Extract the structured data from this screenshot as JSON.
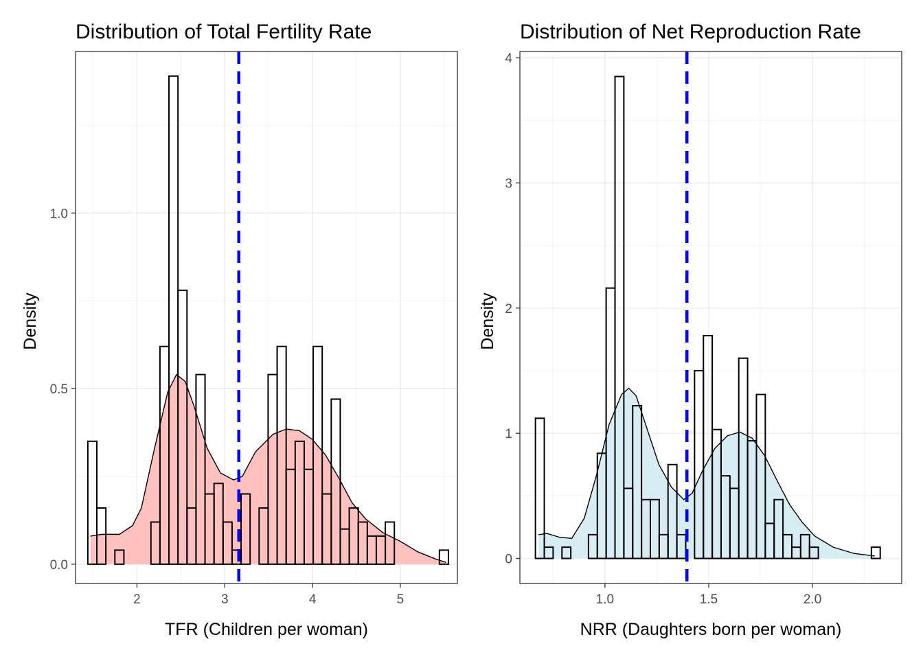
{
  "chart_data": [
    {
      "type": "histogram",
      "title": "Distribution of Total Fertility Rate",
      "xlabel": "TFR (Children per woman)",
      "ylabel": "Density",
      "xlim": [
        1.3,
        5.65
      ],
      "ylim": [
        -0.055,
        1.46
      ],
      "xticks": [
        2,
        3,
        4,
        5
      ],
      "xtick_labels": [
        "2",
        "3",
        "4",
        "5"
      ],
      "yticks": [
        0.0,
        0.5,
        1.0
      ],
      "ytick_labels": [
        "0.0",
        "0.5",
        "1.0"
      ],
      "grid": true,
      "fill_color": "#ffc0c0",
      "reference_line": {
        "x": 3.16,
        "color": "#0000ff",
        "style": "dashed"
      },
      "bins": {
        "start": 1.44,
        "width": 0.1027,
        "density": [
          0.35,
          0.16,
          0.0,
          0.04,
          0.0,
          0.0,
          0.0,
          0.12,
          0.62,
          1.39,
          0.78,
          0.16,
          0.54,
          0.2,
          0.23,
          0.12,
          0.04,
          0.2,
          0.0,
          0.16,
          0.54,
          0.62,
          0.27,
          0.35,
          0.27,
          0.62,
          0.2,
          0.47,
          0.1,
          0.16,
          0.12,
          0.08,
          0.08,
          0.12,
          0.0,
          0.0,
          0.0,
          0.0,
          0.0,
          0.04
        ]
      },
      "density_curve": {
        "x": [
          1.47,
          1.6,
          1.8,
          1.95,
          2.05,
          2.2,
          2.35,
          2.45,
          2.55,
          2.65,
          2.8,
          2.95,
          3.1,
          3.2,
          3.35,
          3.55,
          3.7,
          3.85,
          4.0,
          4.15,
          4.3,
          4.45,
          4.6,
          4.8,
          5.0,
          5.2,
          5.4,
          5.52
        ],
        "y": [
          0.08,
          0.085,
          0.085,
          0.11,
          0.16,
          0.33,
          0.49,
          0.54,
          0.52,
          0.45,
          0.33,
          0.26,
          0.24,
          0.25,
          0.32,
          0.37,
          0.385,
          0.38,
          0.355,
          0.31,
          0.245,
          0.175,
          0.13,
          0.09,
          0.065,
          0.035,
          0.015,
          0.005
        ]
      }
    },
    {
      "type": "histogram",
      "title": "Distribution of Net Reproduction Rate",
      "xlabel": "NRR (Daughters born per woman)",
      "ylabel": "Density",
      "xlim": [
        0.59,
        2.43
      ],
      "ylim": [
        -0.2,
        4.05
      ],
      "xticks": [
        1.0,
        1.5,
        2.0
      ],
      "xtick_labels": [
        "1.0",
        "1.5",
        "2.0"
      ],
      "yticks": [
        0,
        1,
        2,
        3,
        4
      ],
      "ytick_labels": [
        "0",
        "1",
        "2",
        "3",
        "4"
      ],
      "grid": true,
      "fill_color": "#d8ecf4",
      "reference_line": {
        "x": 1.395,
        "color": "#0000ff",
        "style": "dashed"
      },
      "bins": {
        "start": 0.665,
        "width": 0.0426,
        "density": [
          1.12,
          0.09,
          0.0,
          0.09,
          0.0,
          0.0,
          0.19,
          0.84,
          2.16,
          3.85,
          0.56,
          1.22,
          0.47,
          0.47,
          0.19,
          0.75,
          0.19,
          0.0,
          1.5,
          1.78,
          1.03,
          0.66,
          0.56,
          1.6,
          0.94,
          1.31,
          0.28,
          0.47,
          0.19,
          0.09,
          0.19,
          0.09,
          0.0,
          0.0,
          0.0,
          0.0,
          0.0,
          0.0,
          0.09
        ]
      },
      "density_curve": {
        "x": [
          0.68,
          0.72,
          0.78,
          0.84,
          0.9,
          0.96,
          1.02,
          1.08,
          1.115,
          1.15,
          1.2,
          1.26,
          1.32,
          1.38,
          1.42,
          1.47,
          1.53,
          1.59,
          1.65,
          1.71,
          1.77,
          1.83,
          1.89,
          1.95,
          2.01,
          2.1,
          2.2,
          2.3
        ],
        "y": [
          0.19,
          0.2,
          0.17,
          0.16,
          0.32,
          0.67,
          1.07,
          1.31,
          1.36,
          1.3,
          1.05,
          0.75,
          0.57,
          0.47,
          0.52,
          0.7,
          0.88,
          0.98,
          1.01,
          0.96,
          0.82,
          0.62,
          0.43,
          0.29,
          0.18,
          0.09,
          0.04,
          0.02
        ]
      }
    }
  ]
}
